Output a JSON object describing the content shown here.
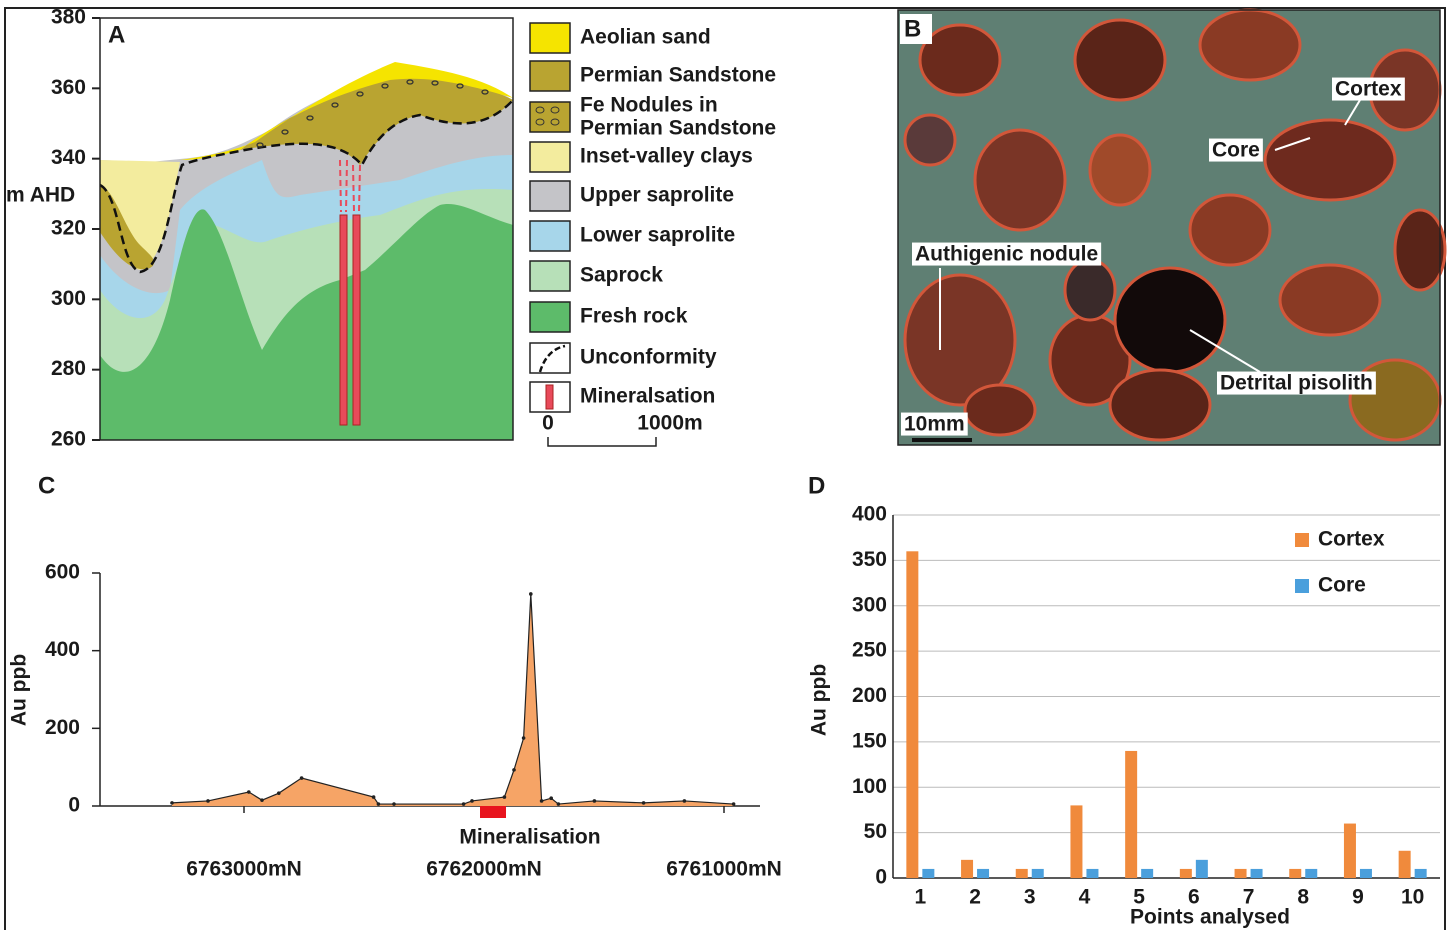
{
  "section": {
    "label": "A",
    "y_label": "m AHD",
    "yticks": [
      260,
      280,
      300,
      320,
      340,
      360,
      380
    ],
    "legend": [
      {
        "label": "Aeolian sand",
        "color": "#f5e400"
      },
      {
        "label": "Permian Sandstone",
        "color": "#b9a431"
      },
      {
        "label": [
          "Fe Nodules in",
          "Permian Sandstone"
        ],
        "color": "#b9a431"
      },
      {
        "label": "Inset-valley clays",
        "color": "#f3ec9e"
      },
      {
        "label": "Upper saprolite",
        "color": "#c4c4c8"
      },
      {
        "label": "Lower saprolite",
        "color": "#a7d6ea"
      },
      {
        "label": "Saprock",
        "color": "#b7e0b8"
      },
      {
        "label": "Fresh rock",
        "color": "#5dbb6a"
      },
      {
        "label": "Unconformity",
        "color": "#ffffff"
      },
      {
        "label": "Mineralsation",
        "color": "#ffffff"
      }
    ],
    "scale": [
      "0",
      "1000m"
    ]
  },
  "photo": {
    "label": "B",
    "annotations": [
      "Cortex",
      "Core",
      "Authigenic nodule",
      "Detrital pisolith"
    ],
    "scale": "10mm"
  },
  "chart_data": [
    {
      "type": "area",
      "label": "C",
      "y_label": "Au ppb",
      "annotation": "Mineralisation",
      "color": "#f6a466",
      "x": [
        6763300,
        6763150,
        6762980,
        6762925,
        6762855,
        6762760,
        6762460,
        6762440,
        6762375,
        6762085,
        6762050,
        6761915,
        6761875,
        6761835,
        6761805,
        6761760,
        6761720,
        6761690,
        6761540,
        6761335,
        6761165,
        6760960
      ],
      "values": [
        8,
        13,
        36,
        15,
        33,
        72,
        23,
        5,
        5,
        5,
        13,
        23,
        93,
        175,
        546,
        13,
        20,
        5,
        13,
        8,
        13,
        5
      ],
      "xlim": [
        6763600,
        6760850
      ],
      "ylim": [
        0,
        600
      ],
      "yticks": [
        0,
        200,
        400,
        600
      ],
      "xticks": [
        {
          "value": 6763000,
          "label": "6763000mN"
        },
        {
          "value": 6762000,
          "label": "6762000mN"
        },
        {
          "value": 6761000,
          "label": "6761000mN"
        }
      ]
    },
    {
      "type": "bar",
      "label": "D",
      "y_label": "Au ppb",
      "x_label": "Points analysed",
      "grid": true,
      "legend": "upper-right",
      "categories": [
        "1",
        "2",
        "3",
        "4",
        "5",
        "6",
        "7",
        "8",
        "9",
        "10"
      ],
      "series": [
        {
          "name": "Cortex",
          "color": "#f08a3c",
          "values": [
            360,
            20,
            10,
            80,
            140,
            10,
            10,
            10,
            60,
            30
          ]
        },
        {
          "name": "Core",
          "color": "#4a9fdc",
          "values": [
            10,
            10,
            10,
            10,
            10,
            20,
            10,
            10,
            10,
            10
          ]
        }
      ],
      "ylim": [
        0,
        400
      ],
      "yticks": [
        0,
        50,
        100,
        150,
        200,
        250,
        300,
        350,
        400
      ]
    }
  ]
}
